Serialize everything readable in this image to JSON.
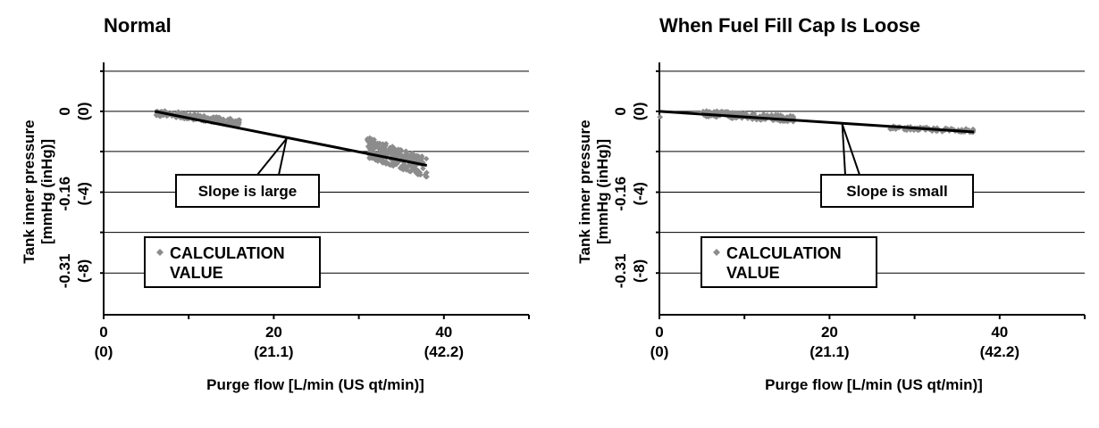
{
  "chart_data": [
    {
      "type": "scatter",
      "title": "Normal",
      "xlabel": "Purge flow [L/min (US qt/min)]",
      "ylabel_line1": "Tank inner pressure",
      "ylabel_line2": "[mmHg (inHg)]",
      "xlim": [
        0,
        50
      ],
      "ylim": [
        -0.395,
        0.095
      ],
      "grid": true,
      "legend_placement": "bottom-left",
      "x_ticks": [
        {
          "value": 0,
          "label": "0",
          "sublabel": "(0)"
        },
        {
          "value": 20,
          "label": "20",
          "sublabel": "(21.1)"
        },
        {
          "value": 40,
          "label": "40",
          "sublabel": "(42.2)"
        }
      ],
      "y_ticks": [
        {
          "value": 0,
          "label": "0",
          "sublabel": "(0)"
        },
        {
          "value": -0.16,
          "label": "-0.16",
          "sublabel": "(-4)"
        },
        {
          "value": -0.31,
          "label": "-0.31",
          "sublabel": "(-8)"
        }
      ],
      "y_gridlines": [
        0.078,
        0,
        -0.078,
        -0.157,
        -0.235,
        -0.314
      ],
      "series": [
        {
          "name": "CALCULATION VALUE",
          "color": "#8c8c8c",
          "clusters": [
            {
              "x_from": 6,
              "x_to": 16,
              "y_start": -0.002,
              "y_end": -0.022,
              "spread": 0.012,
              "count": 150,
              "seed": 11
            },
            {
              "x_from": 31,
              "x_to": 38,
              "y_start": -0.07,
              "y_end": -0.11,
              "spread": 0.04,
              "count": 220,
              "seed": 23
            }
          ]
        }
      ],
      "trend_line": {
        "x": [
          6,
          38
        ],
        "y": [
          0,
          -0.105
        ],
        "color": "#000000"
      },
      "annotation": {
        "text": "Slope is large",
        "target_x": 21.5,
        "target_y": -0.053
      }
    },
    {
      "type": "scatter",
      "title": "When Fuel Fill Cap Is Loose",
      "xlabel": "Purge flow [L/min (US qt/min)]",
      "ylabel_line1": "Tank inner pressure",
      "ylabel_line2": "[mmHg (inHg)]",
      "xlim": [
        0,
        50
      ],
      "ylim": [
        -0.395,
        0.095
      ],
      "grid": true,
      "legend_placement": "bottom-left",
      "x_ticks": [
        {
          "value": 0,
          "label": "0",
          "sublabel": "(0)"
        },
        {
          "value": 20,
          "label": "20",
          "sublabel": "(21.1)"
        },
        {
          "value": 40,
          "label": "40",
          "sublabel": "(42.2)"
        }
      ],
      "y_ticks": [
        {
          "value": 0,
          "label": "0",
          "sublabel": "(0)"
        },
        {
          "value": -0.16,
          "label": "-0.16",
          "sublabel": "(-4)"
        },
        {
          "value": -0.31,
          "label": "-0.31",
          "sublabel": "(-8)"
        }
      ],
      "y_gridlines": [
        0.078,
        0,
        -0.078,
        -0.157,
        -0.235,
        -0.314
      ],
      "series": [
        {
          "name": "CALCULATION VALUE",
          "color": "#8c8c8c",
          "clusters": [
            {
              "x_from": 0,
              "x_to": 0.3,
              "y_start": -0.012,
              "y_end": -0.012,
              "spread": 0.003,
              "count": 2,
              "seed": 5
            },
            {
              "x_from": 5,
              "x_to": 16,
              "y_start": -0.004,
              "y_end": -0.015,
              "spread": 0.012,
              "count": 190,
              "seed": 37
            },
            {
              "x_from": 27,
              "x_to": 37,
              "y_start": -0.032,
              "y_end": -0.038,
              "spread": 0.007,
              "count": 90,
              "seed": 41
            }
          ]
        }
      ],
      "trend_line": {
        "x": [
          0,
          37
        ],
        "y": [
          0,
          -0.04
        ],
        "color": "#000000"
      },
      "annotation": {
        "text": "Slope is small",
        "target_x": 21.5,
        "target_y": -0.025
      }
    }
  ]
}
